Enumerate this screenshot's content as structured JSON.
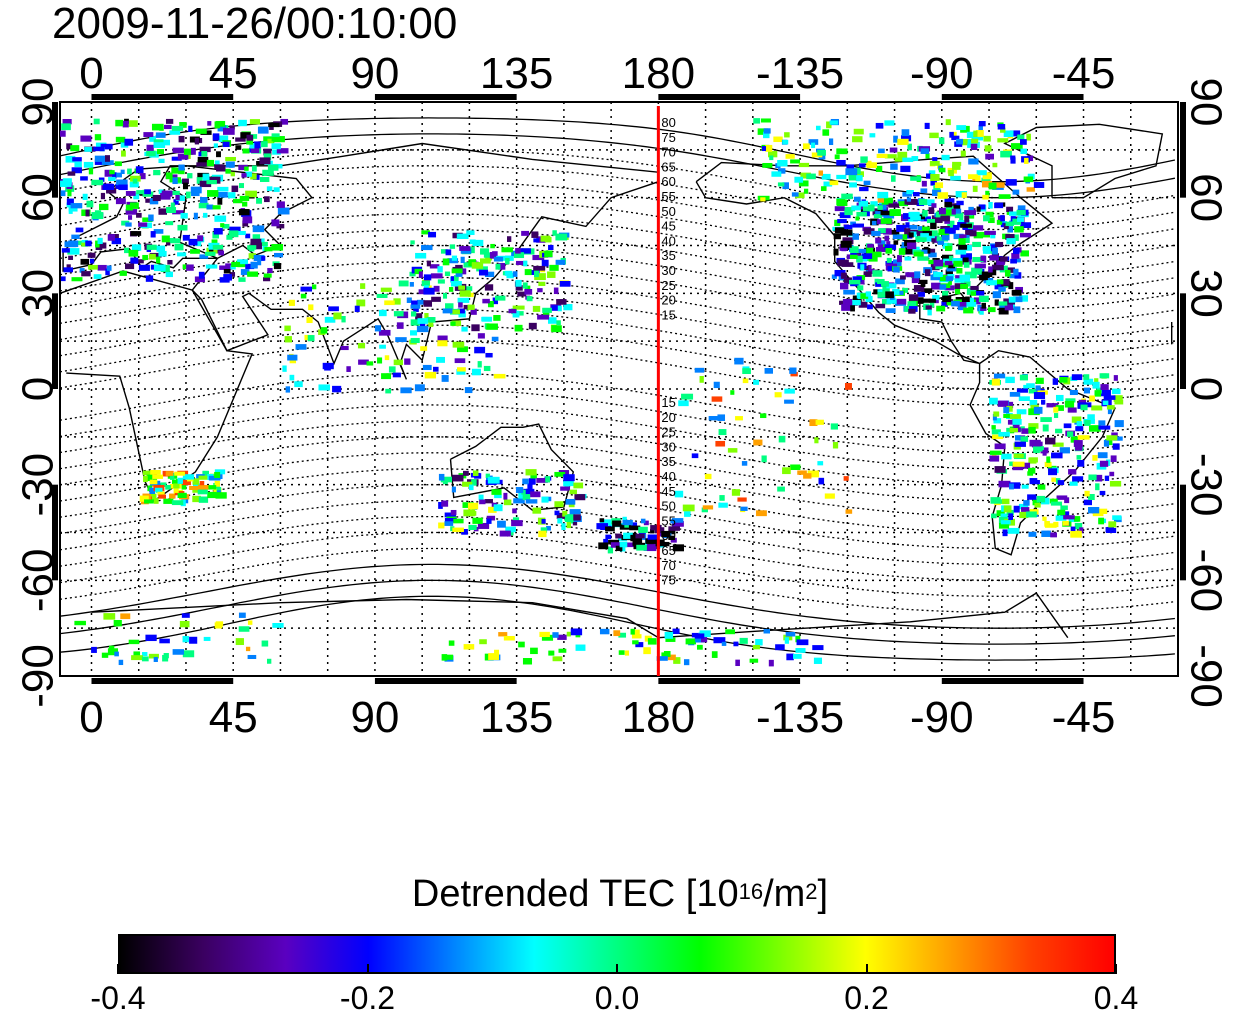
{
  "timestamp": "2009-11-26/00:10:00",
  "map": {
    "x_ticks_top": [
      "0",
      "45",
      "90",
      "135",
      "180",
      "-135",
      "-90",
      "-45"
    ],
    "x_ticks_bottom": [
      "0",
      "45",
      "90",
      "135",
      "180",
      "-135",
      "-90",
      "-45"
    ],
    "y_ticks_left": [
      "90",
      "60",
      "30",
      "0",
      "-30",
      "-60",
      "-90"
    ],
    "y_ticks_right": [
      "90",
      "60",
      "30",
      "0",
      "-30",
      "-60",
      "-90"
    ],
    "longitude_range": [
      -10,
      345
    ],
    "latitude_range": [
      -90,
      90
    ],
    "grid": true,
    "red_meridian_longitude": 180,
    "contour_labels_north": [
      "80",
      "75",
      "70",
      "65",
      "60",
      "55",
      "50",
      "45",
      "40",
      "35",
      "30",
      "25",
      "20",
      "15"
    ],
    "contour_labels_south": [
      "15",
      "20",
      "25",
      "30",
      "35",
      "40",
      "45",
      "50",
      "55",
      "60",
      "65",
      "70",
      "75"
    ],
    "colors": {
      "meridian": "#ff0000",
      "coast": "#000000",
      "contour": "#000000"
    }
  },
  "colorbar": {
    "title": "Detrended TEC  [10",
    "title_exp1": "16",
    "title_mid": "/m",
    "title_exp2": "2",
    "title_end": "]",
    "ticks": [
      "-0.4",
      "-0.2",
      "0.0",
      "0.2",
      "0.4"
    ],
    "range": [
      -0.4,
      0.4
    ],
    "colors": [
      "#000000",
      "#3a0060",
      "#5a00c0",
      "#0000ff",
      "#0080ff",
      "#00ffff",
      "#00ff80",
      "#00ff00",
      "#80ff00",
      "#ffff00",
      "#ffa000",
      "#ff4000",
      "#ff0000"
    ]
  }
}
